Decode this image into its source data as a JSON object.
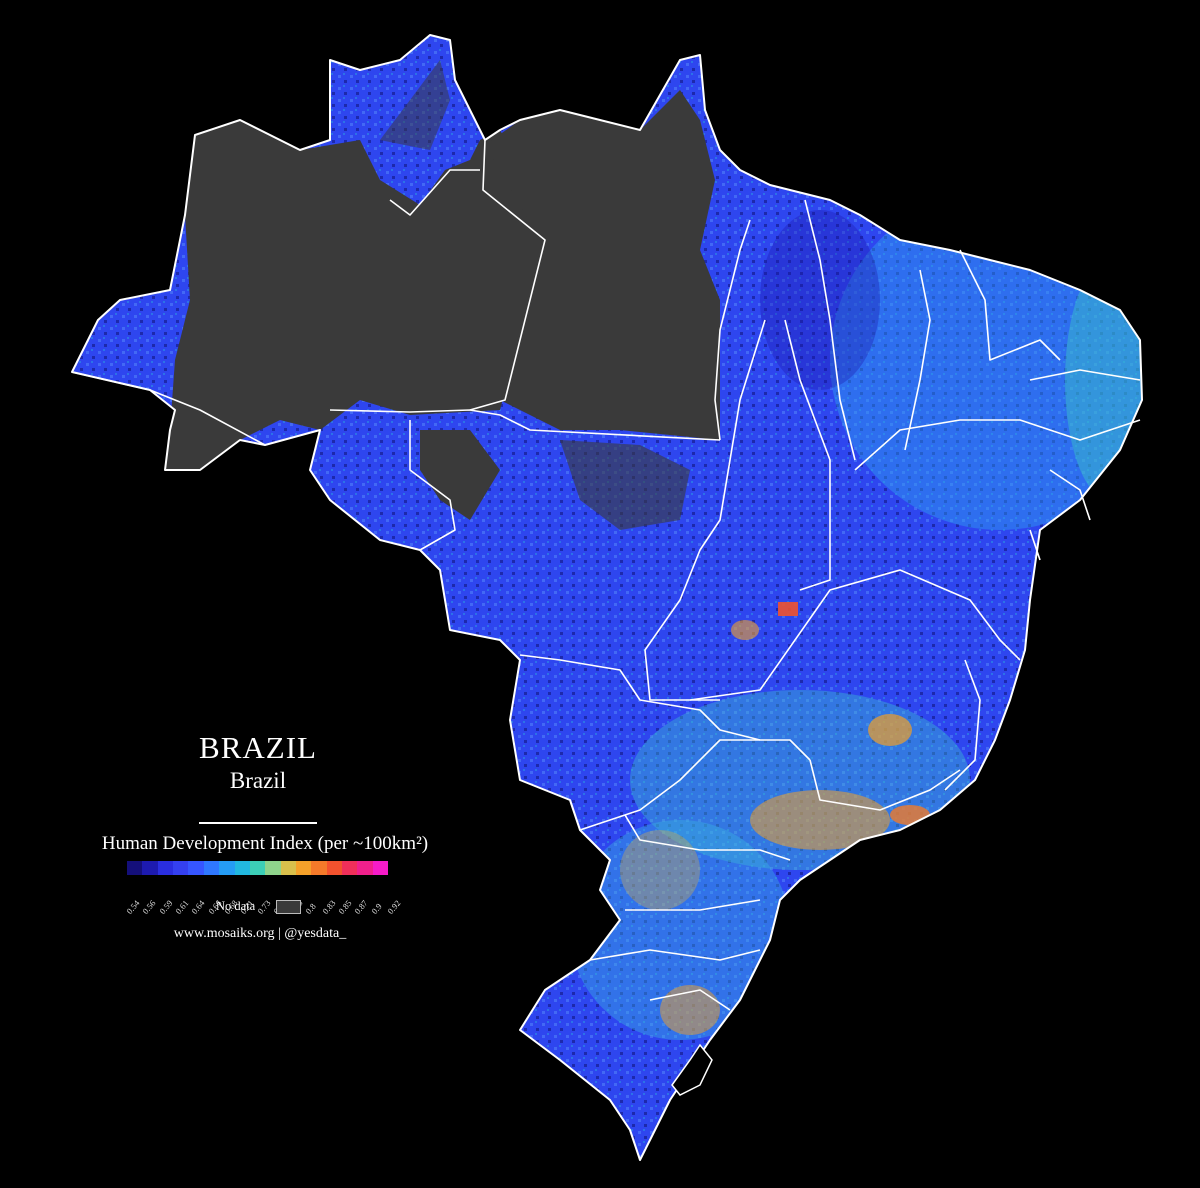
{
  "map": {
    "title": "BRAZIL",
    "subtitle": "Brazil",
    "nodata_color": "#3a3a3a",
    "background": "#000000",
    "border_color": "#ffffff"
  },
  "legend": {
    "title": "Human Development Index (per ~100km²)",
    "ticks": [
      "0.54",
      "0.56",
      "0.59",
      "0.61",
      "0.64",
      "0.66",
      "0.68",
      "0.71",
      "0.73",
      "0.76",
      "0.78",
      "0.8",
      "0.83",
      "0.85",
      "0.87",
      "0.9",
      "0.92"
    ],
    "colors": [
      "#140f7a",
      "#1d1ab0",
      "#2a2ee0",
      "#3440f0",
      "#3656ff",
      "#2f78ff",
      "#259cf5",
      "#22b8e0",
      "#3ccfb7",
      "#8fd48c",
      "#d9c04c",
      "#f5a12a",
      "#f57a2a",
      "#f3522e",
      "#f02f5a",
      "#f0208c",
      "#f61bc8"
    ],
    "nodata_label": "No data"
  },
  "credit": "www.mosaiks.org | @yesdata_"
}
